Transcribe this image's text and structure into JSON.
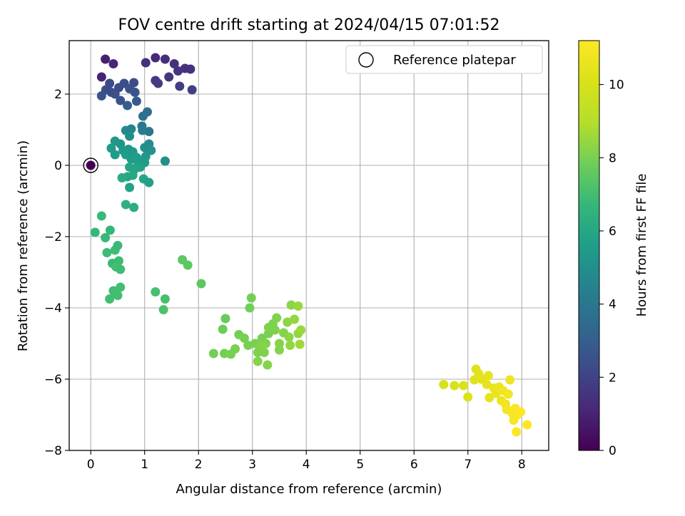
{
  "chart_data": {
    "type": "scatter",
    "title": "FOV centre drift starting at 2024/04/15 07:01:52",
    "xlabel": "Angular distance from reference (arcmin)",
    "ylabel": "Rotation from reference (arcmin)",
    "colorbar_label": "Hours from first FF file",
    "xlim": [
      -0.4,
      8.5
    ],
    "ylim": [
      -8,
      3.5
    ],
    "clim": [
      0,
      11.2
    ],
    "x_ticks": [
      0,
      1,
      2,
      3,
      4,
      5,
      6,
      7,
      8
    ],
    "y_ticks": [
      -8,
      -6,
      -4,
      -2,
      0,
      2
    ],
    "colorbar_ticks": [
      0,
      2,
      4,
      6,
      8,
      10
    ],
    "grid": true,
    "legend": {
      "position": "top-right",
      "entries": [
        "Reference platepar"
      ]
    },
    "colormap": "viridis",
    "reference_point": {
      "x": 0,
      "y": 0,
      "hours": 0
    },
    "series": [
      {
        "points": [
          [
            0.2,
            2.48,
            1.0
          ],
          [
            0.27,
            2.98,
            0.9
          ],
          [
            0.42,
            2.85,
            1.1
          ],
          [
            0.2,
            1.95,
            2.6
          ],
          [
            0.28,
            2.12,
            2.4
          ],
          [
            0.35,
            2.3,
            2.3
          ],
          [
            0.45,
            2.0,
            2.5
          ],
          [
            0.52,
            2.18,
            2.3
          ],
          [
            0.55,
            1.82,
            2.6
          ],
          [
            0.62,
            2.3,
            2.4
          ],
          [
            0.72,
            2.15,
            2.5
          ],
          [
            0.8,
            2.32,
            2.4
          ],
          [
            0.85,
            1.8,
            2.8
          ],
          [
            0.68,
            1.68,
            3.0
          ],
          [
            0.82,
            2.05,
            2.6
          ],
          [
            1.02,
            2.88,
            1.4
          ],
          [
            1.2,
            3.02,
            1.2
          ],
          [
            1.38,
            2.98,
            1.3
          ],
          [
            1.55,
            2.85,
            1.4
          ],
          [
            1.62,
            2.65,
            1.5
          ],
          [
            1.75,
            2.72,
            1.4
          ],
          [
            1.85,
            2.7,
            1.4
          ],
          [
            1.45,
            2.48,
            1.6
          ],
          [
            1.2,
            2.38,
            1.7
          ],
          [
            1.25,
            2.3,
            1.8
          ],
          [
            1.65,
            2.22,
            1.8
          ],
          [
            1.88,
            2.12,
            1.9
          ],
          [
            0.38,
            2.05,
            2.4
          ],
          [
            0.97,
            1.38,
            3.7
          ],
          [
            1.05,
            1.5,
            3.6
          ],
          [
            0.95,
            1.1,
            4.0
          ],
          [
            1.08,
            0.95,
            4.0
          ],
          [
            0.96,
            0.98,
            4.2
          ],
          [
            0.65,
            0.98,
            4.8
          ],
          [
            0.75,
            1.02,
            4.6
          ],
          [
            0.72,
            0.82,
            4.9
          ],
          [
            0.55,
            0.6,
            5.2
          ],
          [
            0.45,
            0.68,
            5.3
          ],
          [
            0.38,
            0.48,
            5.5
          ],
          [
            0.45,
            0.3,
            5.5
          ],
          [
            0.6,
            0.42,
            5.4
          ],
          [
            0.65,
            0.3,
            5.6
          ],
          [
            0.7,
            0.45,
            5.4
          ],
          [
            0.75,
            0.18,
            5.5
          ],
          [
            0.78,
            0.38,
            5.4
          ],
          [
            0.85,
            0.22,
            5.6
          ],
          [
            0.88,
            0.05,
            5.7
          ],
          [
            0.95,
            0.12,
            5.6
          ],
          [
            1.0,
            0.5,
            5.0
          ],
          [
            1.08,
            0.6,
            4.9
          ],
          [
            1.12,
            0.42,
            5.1
          ],
          [
            1.02,
            0.25,
            5.3
          ],
          [
            1.0,
            0.08,
            5.5
          ],
          [
            0.92,
            -0.05,
            5.8
          ],
          [
            0.82,
            -0.1,
            5.9
          ],
          [
            0.72,
            -0.05,
            5.9
          ],
          [
            0.68,
            -0.32,
            6.0
          ],
          [
            0.58,
            -0.35,
            6.2
          ],
          [
            0.78,
            -0.28,
            6.0
          ],
          [
            0.98,
            -0.38,
            5.9
          ],
          [
            1.08,
            -0.48,
            5.7
          ],
          [
            0.72,
            -0.62,
            5.8
          ],
          [
            1.38,
            0.12,
            5.0
          ],
          [
            0.65,
            -1.1,
            6.4
          ],
          [
            0.8,
            -1.18,
            6.3
          ],
          [
            0.2,
            -1.42,
            6.8
          ],
          [
            0.08,
            -1.88,
            6.7
          ],
          [
            0.27,
            -2.03,
            6.8
          ],
          [
            0.36,
            -1.82,
            6.7
          ],
          [
            0.45,
            -2.38,
            6.9
          ],
          [
            0.5,
            -2.25,
            6.8
          ],
          [
            0.3,
            -2.45,
            6.9
          ],
          [
            0.52,
            -2.68,
            6.9
          ],
          [
            0.4,
            -2.75,
            6.8
          ],
          [
            0.47,
            -2.85,
            7.0
          ],
          [
            0.55,
            -2.92,
            6.9
          ],
          [
            0.35,
            -3.75,
            7.0
          ],
          [
            0.42,
            -3.52,
            6.9
          ],
          [
            0.5,
            -3.65,
            7.0
          ],
          [
            0.45,
            -3.6,
            7.0
          ],
          [
            0.55,
            -3.42,
            7.0
          ],
          [
            1.2,
            -3.55,
            7.1
          ],
          [
            1.38,
            -3.75,
            7.1
          ],
          [
            1.35,
            -4.05,
            7.2
          ],
          [
            1.7,
            -2.65,
            7.5
          ],
          [
            1.8,
            -2.8,
            7.5
          ],
          [
            2.05,
            -3.32,
            7.5
          ],
          [
            2.5,
            -4.3,
            7.7
          ],
          [
            2.45,
            -4.6,
            7.8
          ],
          [
            2.28,
            -5.28,
            7.9
          ],
          [
            2.48,
            -5.28,
            7.9
          ],
          [
            2.6,
            -5.3,
            8.0
          ],
          [
            2.68,
            -5.15,
            8.0
          ],
          [
            2.75,
            -4.75,
            7.9
          ],
          [
            2.85,
            -4.85,
            8.0
          ],
          [
            2.92,
            -5.05,
            8.0
          ],
          [
            2.95,
            -4.0,
            7.9
          ],
          [
            2.98,
            -3.72,
            7.9
          ],
          [
            3.05,
            -5.0,
            8.0
          ],
          [
            3.1,
            -5.25,
            8.1
          ],
          [
            3.1,
            -5.5,
            8.2
          ],
          [
            3.15,
            -5.1,
            8.1
          ],
          [
            3.18,
            -4.85,
            8.0
          ],
          [
            3.22,
            -5.25,
            8.1
          ],
          [
            3.25,
            -5.0,
            8.1
          ],
          [
            3.28,
            -5.6,
            8.2
          ],
          [
            3.3,
            -4.72,
            8.0
          ],
          [
            3.3,
            -4.55,
            8.1
          ],
          [
            3.38,
            -4.45,
            8.1
          ],
          [
            3.42,
            -4.62,
            8.1
          ],
          [
            3.45,
            -4.28,
            8.1
          ],
          [
            3.5,
            -5.0,
            8.2
          ],
          [
            3.5,
            -5.18,
            8.2
          ],
          [
            3.58,
            -4.7,
            8.2
          ],
          [
            3.65,
            -4.4,
            8.3
          ],
          [
            3.68,
            -4.82,
            8.3
          ],
          [
            3.7,
            -5.05,
            8.4
          ],
          [
            3.72,
            -3.92,
            8.3
          ],
          [
            3.78,
            -4.32,
            8.4
          ],
          [
            3.85,
            -4.72,
            8.4
          ],
          [
            3.85,
            -3.95,
            8.5
          ],
          [
            3.88,
            -5.02,
            8.6
          ],
          [
            3.9,
            -4.62,
            8.5
          ],
          [
            3.18,
            -5.05,
            8.2
          ],
          [
            6.55,
            -6.15,
            10.0
          ],
          [
            6.75,
            -6.18,
            10.1
          ],
          [
            6.92,
            -6.18,
            10.1
          ],
          [
            7.0,
            -6.5,
            10.2
          ],
          [
            7.12,
            -6.02,
            10.3
          ],
          [
            7.15,
            -5.72,
            10.3
          ],
          [
            7.2,
            -5.85,
            10.4
          ],
          [
            7.25,
            -6.0,
            10.4
          ],
          [
            7.38,
            -5.9,
            10.5
          ],
          [
            7.4,
            -6.52,
            10.5
          ],
          [
            7.48,
            -6.25,
            10.6
          ],
          [
            7.52,
            -6.4,
            10.6
          ],
          [
            7.58,
            -6.22,
            10.7
          ],
          [
            7.62,
            -6.6,
            10.7
          ],
          [
            7.65,
            -6.32,
            10.8
          ],
          [
            7.7,
            -6.7,
            10.8
          ],
          [
            7.72,
            -6.85,
            10.9
          ],
          [
            7.75,
            -6.42,
            10.9
          ],
          [
            7.78,
            -6.02,
            10.8
          ],
          [
            7.82,
            -6.95,
            11.0
          ],
          [
            7.85,
            -7.15,
            11.0
          ],
          [
            7.88,
            -6.82,
            11.1
          ],
          [
            7.9,
            -6.9,
            11.1
          ],
          [
            7.92,
            -7.0,
            11.1
          ],
          [
            7.98,
            -6.92,
            11.2
          ],
          [
            7.9,
            -7.48,
            11.2
          ],
          [
            8.1,
            -7.28,
            11.2
          ],
          [
            7.35,
            -6.15,
            10.5
          ]
        ]
      }
    ]
  }
}
